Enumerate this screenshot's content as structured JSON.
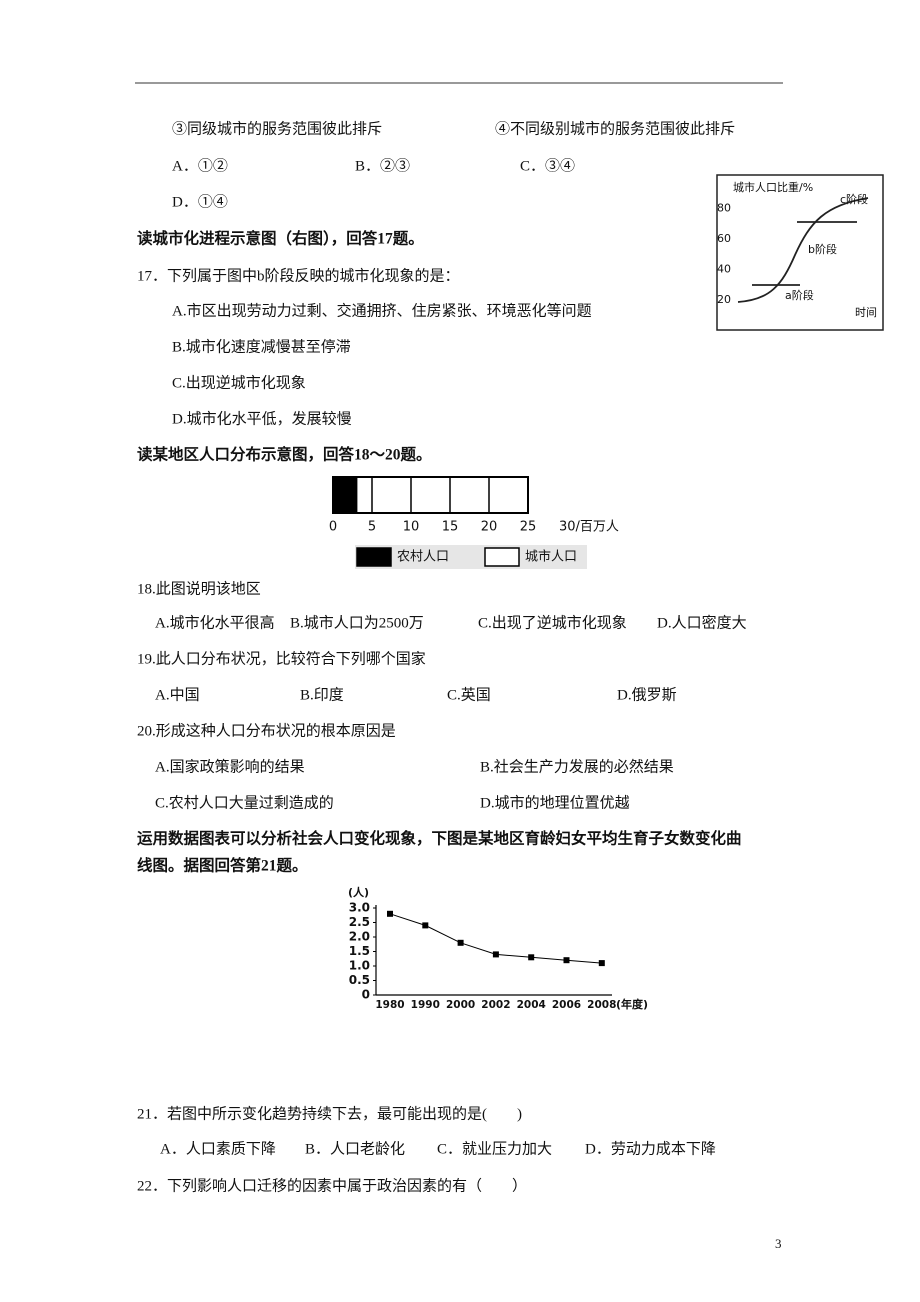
{
  "q16": {
    "statements": [
      "③同级城市的服务范围彼此排斥",
      "④不同级别城市的服务范围彼此排斥"
    ],
    "options": [
      "A．①②",
      "B．②③",
      "C．③④",
      "D．①④"
    ]
  },
  "intro17": "读城市化进程示意图（右图），回答17题。",
  "figure17": {
    "ylabel": "城市人口比重/%",
    "xlabel": "时间",
    "ylim": [
      10,
      90
    ],
    "yticks": [
      20,
      40,
      60,
      80
    ],
    "stages": [
      "a阶段",
      "b阶段",
      "c阶段"
    ]
  },
  "q17": {
    "stem": "17．下列属于图中b阶段反映的城市化现象的是：",
    "options": [
      "A.市区出现劳动力过剩、交通拥挤、住房紧张、环境恶化等问题",
      "B.城市化速度减慢甚至停滞",
      "C.出现逆城市化现象",
      "D.城市化水平低，发展较慢"
    ]
  },
  "intro18": "读某地区人口分布示意图，回答18～20题。",
  "figure18": {
    "type": "bar",
    "xlim": [
      0,
      30
    ],
    "xticks": [
      0,
      5,
      10,
      15,
      20,
      25,
      {
        "value": 30,
        "label": "30/百万人"
      }
    ],
    "series": [
      {
        "name": "农村人口",
        "color": "#000000",
        "values": [
          3
        ]
      },
      {
        "name": "城市人口",
        "color": "#ffffff",
        "values": [
          22
        ]
      }
    ]
  },
  "q18": {
    "stem": "18.此图说明该地区",
    "options": [
      "A.城市化水平很高",
      "B.城市人口为2500万",
      "C.出现了逆城市化现象",
      "D.人口密度大"
    ]
  },
  "q19": {
    "stem": "19.此人口分布状况，比较符合下列哪个国家",
    "options": [
      "A.中国",
      "B.印度",
      "C.英国",
      "D.俄罗斯"
    ]
  },
  "q20": {
    "stem": "20.形成这种人口分布状况的根本原因是",
    "options": [
      "A.国家政策影响的结果",
      "B.社会生产力发展的必然结果",
      "C.农村人口大量过剩造成的",
      "D.城市的地理位置优越"
    ]
  },
  "intro21": [
    "运用数据图表可以分析社会人口变化现象，下图是某地区育龄妇女平均生育子女数变化曲",
    "线图。据图回答第21题。"
  ],
  "figure21": {
    "type": "line",
    "ylabel": "(人)",
    "xlabel": "(年度)",
    "categories": [
      "1980",
      "1990",
      "2000",
      "2002",
      "2004",
      "2006",
      "2008"
    ],
    "values": [
      2.8,
      2.4,
      1.8,
      1.4,
      1.3,
      1.2,
      1.1
    ],
    "color": "#000000",
    "ylim": [
      0,
      3
    ],
    "yticks": [
      0,
      0.5,
      {
        "value": 1,
        "label": "1.0"
      },
      1.5,
      {
        "value": 2,
        "label": "2.0"
      },
      2.5,
      {
        "value": 3,
        "label": "3.0"
      }
    ]
  },
  "q21": {
    "stem": "21．若图中所示变化趋势持续下去，最可能出现的是(　　)",
    "options": [
      "A．人口素质下降",
      "B．人口老龄化",
      "C．就业压力加大",
      "D．劳动力成本下降"
    ]
  },
  "q22": {
    "stem": "22．下列影响人口迁移的因素中属于政治因素的有（　　）"
  },
  "page_number": "3"
}
